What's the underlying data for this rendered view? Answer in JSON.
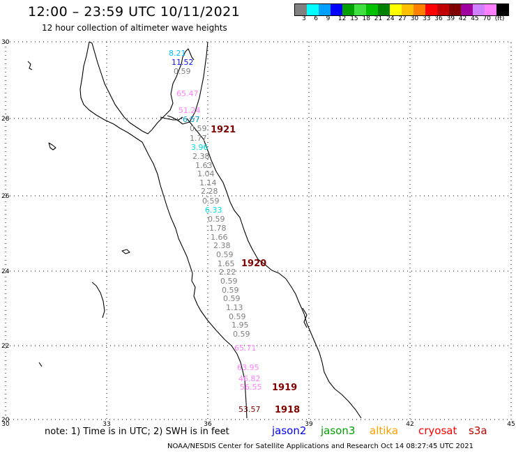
{
  "header": {
    "title": "12:00 – 23:59 UTC 10/11/2021",
    "subtitle": "12 hour collection of altimeter wave heights"
  },
  "legend": {
    "colors": [
      "#808080",
      "#00ffff",
      "#00a0ff",
      "#0000ff",
      "#00a000",
      "#40e040",
      "#00c000",
      "#008000",
      "#ffff00",
      "#ffc000",
      "#ff8000",
      "#ff0000",
      "#c00000",
      "#800000",
      "#a000a0",
      "#d080ff",
      "#ff80ff",
      "#000000"
    ],
    "labels": [
      "3",
      "6",
      "9",
      "12",
      "15",
      "18",
      "21",
      "24",
      "27",
      "30",
      "33",
      "36",
      "39",
      "42",
      "45",
      "70",
      "(ft)"
    ]
  },
  "axes": {
    "lat_labels": [
      "30",
      "28",
      "26",
      "24",
      "22",
      "20"
    ],
    "lon_labels": [
      "30",
      "33",
      "36",
      "39",
      "42",
      "45"
    ]
  },
  "observations": [
    {
      "text": "8.21",
      "color": "#00bfff"
    },
    {
      "text": "11.52",
      "color": "#1010ff"
    },
    {
      "text": "0.59",
      "color": "#808080"
    },
    {
      "text": "65.47",
      "color": "#ff80ff"
    },
    {
      "text": "51.24",
      "color": "#ff80ff"
    },
    {
      "text": "6.57",
      "color": "#00a0d0"
    },
    {
      "text": "0.59",
      "color": "#808080"
    },
    {
      "text": "1.77",
      "color": "#808080"
    },
    {
      "text": "3.96",
      "color": "#00e0e0"
    },
    {
      "text": "2.38",
      "color": "#808080"
    },
    {
      "text": "1.63",
      "color": "#808080"
    },
    {
      "text": "1.04",
      "color": "#808080"
    },
    {
      "text": "1.14",
      "color": "#808080"
    },
    {
      "text": "2.28",
      "color": "#808080"
    },
    {
      "text": "0.59",
      "color": "#808080"
    },
    {
      "text": "6.33",
      "color": "#00e0e0"
    },
    {
      "text": "0.59",
      "color": "#808080"
    },
    {
      "text": "1.78",
      "color": "#808080"
    },
    {
      "text": "1.66",
      "color": "#808080"
    },
    {
      "text": "2.38",
      "color": "#808080"
    },
    {
      "text": "0.59",
      "color": "#808080"
    },
    {
      "text": "1.65",
      "color": "#808080"
    },
    {
      "text": "2.22",
      "color": "#808080"
    },
    {
      "text": "0.59",
      "color": "#808080"
    },
    {
      "text": "0.59",
      "color": "#808080"
    },
    {
      "text": "0.59",
      "color": "#808080"
    },
    {
      "text": "1.13",
      "color": "#808080"
    },
    {
      "text": "0.59",
      "color": "#808080"
    },
    {
      "text": "1.95",
      "color": "#808080"
    },
    {
      "text": "0.59",
      "color": "#808080"
    },
    {
      "text": "65.71",
      "color": "#ff80ff"
    },
    {
      "text": "63.95",
      "color": "#ff80ff"
    },
    {
      "text": "46.82",
      "color": "#ff80ff"
    },
    {
      "text": "56.55",
      "color": "#ff80ff"
    },
    {
      "text": "53.57",
      "color": "#800000"
    }
  ],
  "passes": [
    {
      "text": "1921",
      "color": "#800000"
    },
    {
      "text": "1920",
      "color": "#800000"
    },
    {
      "text": "1919",
      "color": "#800000"
    },
    {
      "text": "1918",
      "color": "#800000"
    }
  ],
  "footer": {
    "note": "note: 1) Time is in UTC; 2) SWH is in feet",
    "credit": "NOAA/NESDIS Center for Satellite Applications and Research   Oct 14 08:27:45 UTC 2021"
  },
  "satellites": [
    {
      "name": "jason2",
      "color": "#0000ff"
    },
    {
      "name": "jason3",
      "color": "#00a000"
    },
    {
      "name": "altika",
      "color": "#ffa000"
    },
    {
      "name": "cryosat",
      "color": "#ff0000"
    },
    {
      "name": "s3a",
      "color": "#c00000"
    }
  ]
}
